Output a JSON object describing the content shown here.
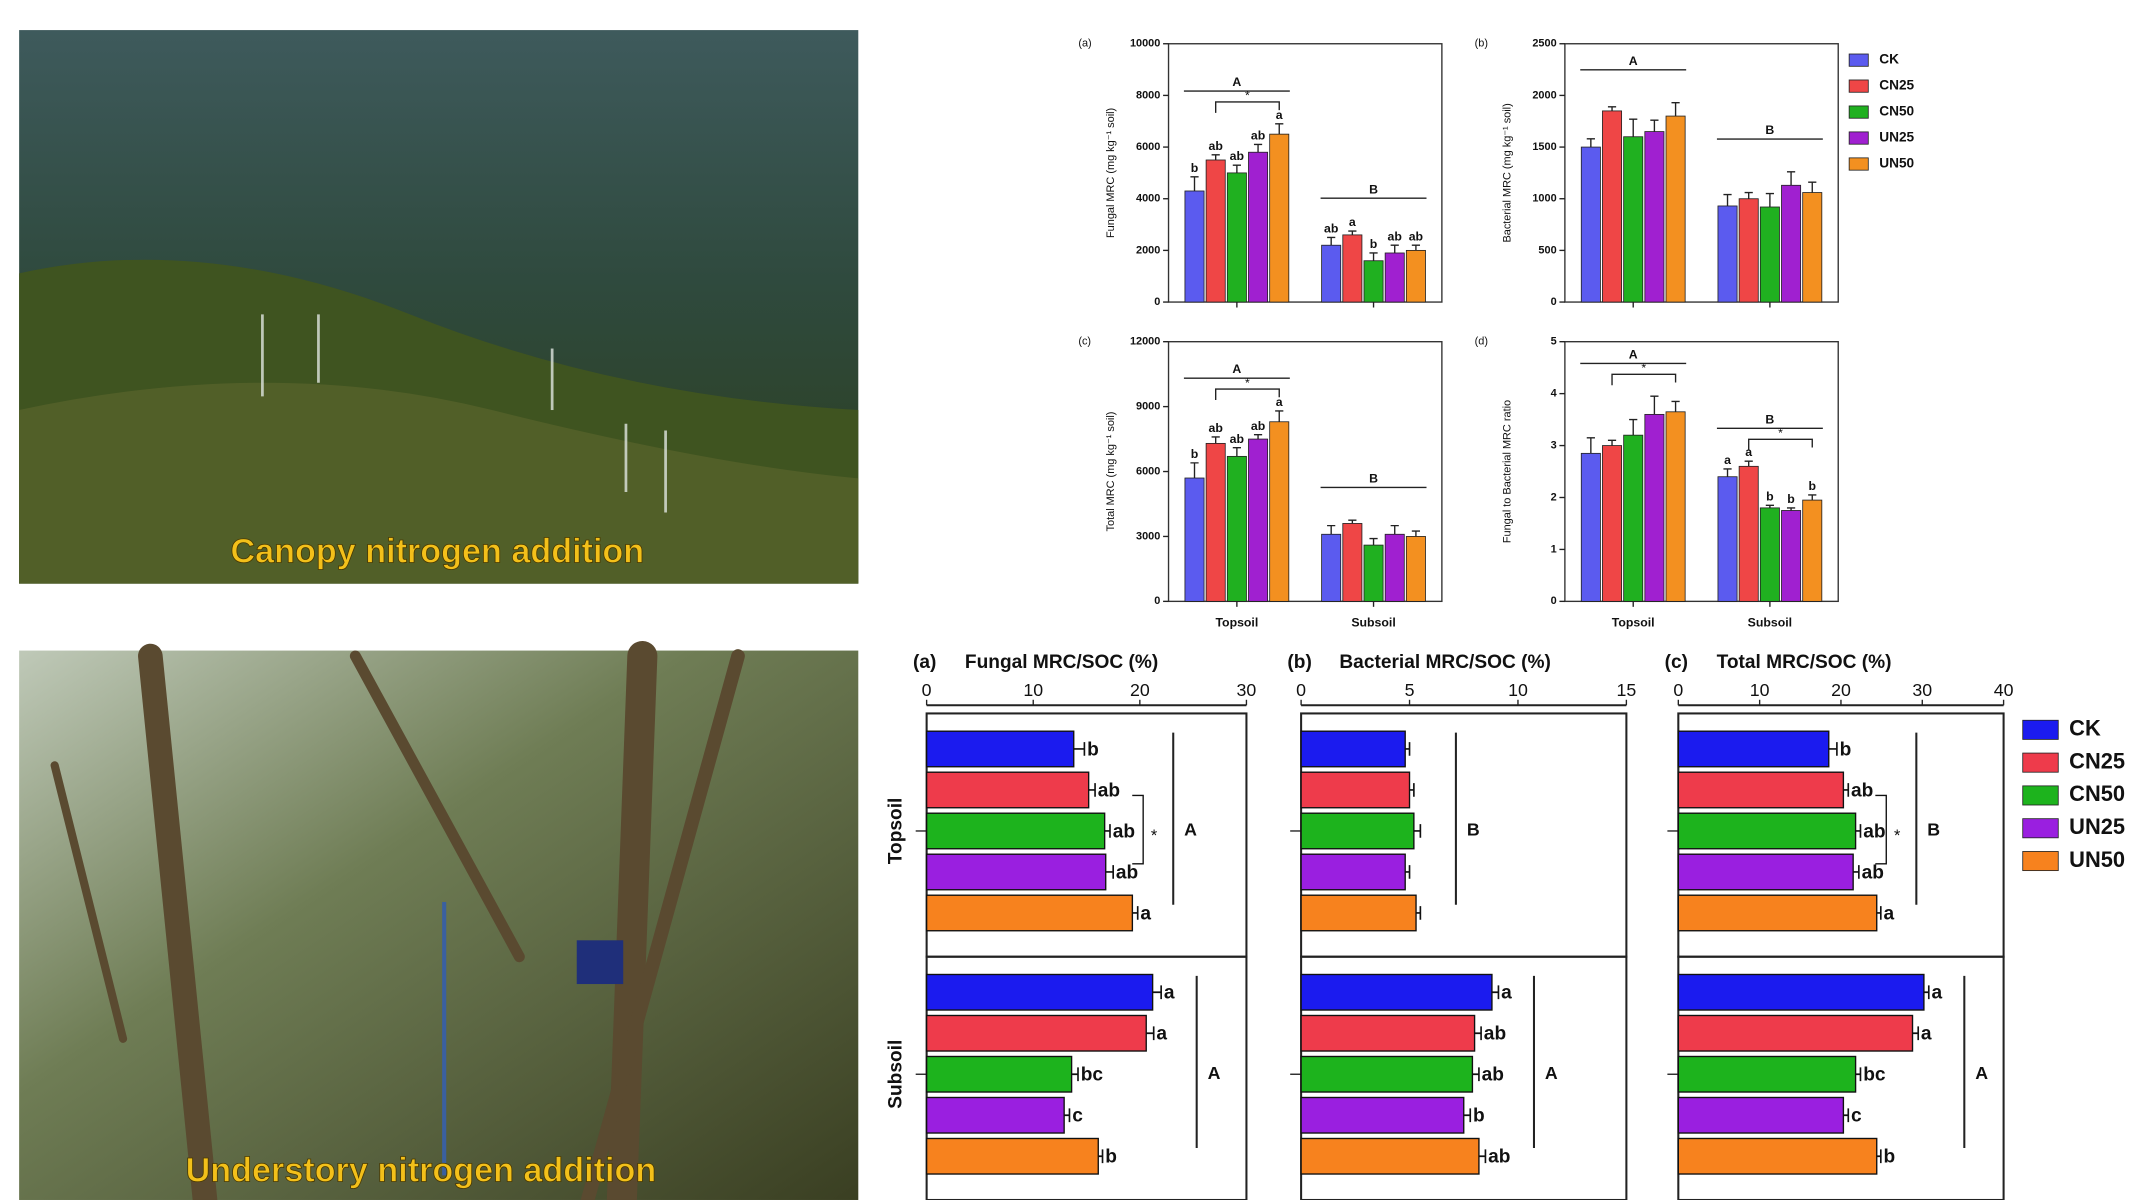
{
  "photos": [
    {
      "caption": "Canopy nitrogen addition"
    },
    {
      "caption": "Understory nitrogen addition"
    }
  ],
  "chart_data": [
    {
      "type": "bar",
      "panel": "(a)",
      "ylabel": "Fungal MRC (mg kg⁻¹ soil)",
      "categories": [
        null,
        null
      ],
      "ylim": [
        0,
        10000
      ],
      "yticks": [
        0,
        2000,
        4000,
        6000,
        8000,
        10000
      ],
      "series": [
        {
          "color": "#5b5bef",
          "values": [
            4300,
            2200
          ],
          "errors": [
            550,
            300
          ],
          "labels": [
            "b",
            "ab"
          ]
        },
        {
          "color": "#ef4646",
          "values": [
            5500,
            2600
          ],
          "errors": [
            200,
            150
          ],
          "labels": [
            "ab",
            "a"
          ]
        },
        {
          "color": "#20b020",
          "values": [
            5000,
            1600
          ],
          "errors": [
            300,
            300
          ],
          "labels": [
            "ab",
            "b"
          ]
        },
        {
          "color": "#a020d0",
          "values": [
            5800,
            1900
          ],
          "errors": [
            300,
            300
          ],
          "labels": [
            "ab",
            "ab"
          ]
        },
        {
          "color": "#f39020",
          "values": [
            6500,
            2000
          ],
          "errors": [
            400,
            200
          ],
          "labels": [
            "a",
            "ab"
          ]
        }
      ],
      "groups": [
        {
          "letter": "A",
          "star": "*"
        },
        {
          "letter": "B"
        }
      ]
    },
    {
      "type": "bar",
      "panel": "(b)",
      "ylabel": "Bacterial MRC (mg kg⁻¹ soil)",
      "categories": [
        null,
        null
      ],
      "ylim": [
        0,
        2500
      ],
      "yticks": [
        0,
        500,
        1000,
        1500,
        2000,
        2500
      ],
      "legend": "right",
      "series": [
        {
          "name": "CK",
          "color": "#5b5bef",
          "values": [
            1500,
            930
          ],
          "errors": [
            80,
            110
          ]
        },
        {
          "name": "CN25",
          "color": "#ef4646",
          "values": [
            1850,
            1000
          ],
          "errors": [
            40,
            60
          ]
        },
        {
          "name": "CN50",
          "color": "#20b020",
          "values": [
            1600,
            920
          ],
          "errors": [
            170,
            130
          ]
        },
        {
          "name": "UN25",
          "color": "#a020d0",
          "values": [
            1650,
            1130
          ],
          "errors": [
            110,
            130
          ]
        },
        {
          "name": "UN50",
          "color": "#f39020",
          "values": [
            1800,
            1060
          ],
          "errors": [
            130,
            100
          ]
        }
      ],
      "groups": [
        {
          "letter": "A"
        },
        {
          "letter": "B"
        }
      ]
    },
    {
      "type": "bar",
      "panel": "(c)",
      "ylabel": "Total MRC (mg kg⁻¹ soil)",
      "categories": [
        "Topsoil",
        "Subsoil"
      ],
      "ylim": [
        0,
        12000
      ],
      "yticks": [
        0,
        3000,
        6000,
        9000,
        12000
      ],
      "series": [
        {
          "color": "#5b5bef",
          "values": [
            5700,
            3100
          ],
          "errors": [
            700,
            400
          ],
          "labels": [
            "b",
            null
          ]
        },
        {
          "color": "#ef4646",
          "values": [
            7300,
            3600
          ],
          "errors": [
            300,
            150
          ],
          "labels": [
            "ab",
            null
          ]
        },
        {
          "color": "#20b020",
          "values": [
            6700,
            2600
          ],
          "errors": [
            400,
            300
          ],
          "labels": [
            "ab",
            null
          ]
        },
        {
          "color": "#a020d0",
          "values": [
            7500,
            3100
          ],
          "errors": [
            200,
            400
          ],
          "labels": [
            "ab",
            null
          ]
        },
        {
          "color": "#f39020",
          "values": [
            8300,
            3000
          ],
          "errors": [
            500,
            250
          ],
          "labels": [
            "a",
            null
          ]
        }
      ],
      "groups": [
        {
          "letter": "A",
          "star": "*"
        },
        {
          "letter": "B"
        }
      ]
    },
    {
      "type": "bar",
      "panel": "(d)",
      "ylabel": "Fungal to Bacterial MRC ratio",
      "categories": [
        "Topsoil",
        "Subsoil"
      ],
      "ylim": [
        0,
        5
      ],
      "yticks": [
        0,
        1,
        2,
        3,
        4,
        5
      ],
      "series": [
        {
          "color": "#5b5bef",
          "values": [
            2.85,
            2.4
          ],
          "errors": [
            0.3,
            0.15
          ],
          "labels": [
            null,
            "a"
          ]
        },
        {
          "color": "#ef4646",
          "values": [
            3.0,
            2.6
          ],
          "errors": [
            0.1,
            0.1
          ],
          "labels": [
            null,
            "a"
          ]
        },
        {
          "color": "#20b020",
          "values": [
            3.2,
            1.8
          ],
          "errors": [
            0.3,
            0.05
          ],
          "labels": [
            null,
            "b"
          ]
        },
        {
          "color": "#a020d0",
          "values": [
            3.6,
            1.75
          ],
          "errors": [
            0.35,
            0.05
          ],
          "labels": [
            null,
            "b"
          ]
        },
        {
          "color": "#f39020",
          "values": [
            3.65,
            1.95
          ],
          "errors": [
            0.2,
            0.1
          ],
          "labels": [
            null,
            "b"
          ]
        }
      ],
      "groups": [
        {
          "letter": "A",
          "star": "*"
        },
        {
          "letter": "B",
          "star": "*"
        }
      ]
    },
    {
      "type": "barh",
      "panel": "(a)",
      "title": "Fungal MRC/SOC (%)",
      "categories": [
        "Topsoil",
        "Subsoil"
      ],
      "xlim": [
        0,
        30
      ],
      "xticks": [
        0,
        10,
        20,
        30
      ],
      "series": [
        {
          "color": "#1b1bef",
          "values": [
            13.8,
            21.2
          ],
          "errors": [
            1,
            0.8
          ],
          "labels": [
            "b",
            "a"
          ]
        },
        {
          "color": "#ee3b4b",
          "values": [
            15.2,
            20.6
          ],
          "errors": [
            0.6,
            0.7
          ],
          "labels": [
            "ab",
            "a"
          ]
        },
        {
          "color": "#1db31d",
          "values": [
            16.7,
            13.6
          ],
          "errors": [
            0.5,
            0.6
          ],
          "labels": [
            "ab",
            "bc"
          ]
        },
        {
          "color": "#9a1fe0",
          "values": [
            16.8,
            12.9
          ],
          "errors": [
            0.7,
            0.5
          ],
          "labels": [
            "ab",
            "c"
          ]
        },
        {
          "color": "#f7821e",
          "values": [
            19.3,
            16.1
          ],
          "errors": [
            0.5,
            0.4
          ],
          "labels": [
            "a",
            "b"
          ]
        }
      ],
      "groups": [
        {
          "letter": "A",
          "star": "*"
        },
        {
          "letter": "A"
        }
      ]
    },
    {
      "type": "barh",
      "panel": "(b)",
      "title": "Bacterial MRC/SOC (%)",
      "categories": [
        null,
        null
      ],
      "xlim": [
        0,
        15
      ],
      "xticks": [
        0,
        5,
        10,
        15
      ],
      "series": [
        {
          "color": "#1b1bef",
          "values": [
            4.8,
            8.8
          ],
          "errors": [
            0.2,
            0.3
          ],
          "labels": [
            null,
            "a"
          ]
        },
        {
          "color": "#ee3b4b",
          "values": [
            5.0,
            8.0
          ],
          "errors": [
            0.2,
            0.3
          ],
          "labels": [
            null,
            "ab"
          ]
        },
        {
          "color": "#1db31d",
          "values": [
            5.2,
            7.9
          ],
          "errors": [
            0.3,
            0.3
          ],
          "labels": [
            null,
            "ab"
          ]
        },
        {
          "color": "#9a1fe0",
          "values": [
            4.8,
            7.5
          ],
          "errors": [
            0.2,
            0.3
          ],
          "labels": [
            null,
            "b"
          ]
        },
        {
          "color": "#f7821e",
          "values": [
            5.3,
            8.2
          ],
          "errors": [
            0.2,
            0.3
          ],
          "labels": [
            null,
            "ab"
          ]
        }
      ],
      "groups": [
        {
          "letter": "B"
        },
        {
          "letter": "A"
        }
      ]
    },
    {
      "type": "barh",
      "panel": "(c)",
      "title": "Total MRC/SOC (%)",
      "categories": [
        null,
        null
      ],
      "xlim": [
        0,
        40
      ],
      "xticks": [
        0,
        10,
        20,
        30,
        40
      ],
      "legend": "right",
      "series": [
        {
          "name": "CK",
          "color": "#1b1bef",
          "values": [
            18.5,
            30.2
          ],
          "errors": [
            1,
            0.6
          ],
          "labels": [
            "b",
            "a"
          ]
        },
        {
          "name": "CN25",
          "color": "#ee3b4b",
          "values": [
            20.3,
            28.8
          ],
          "errors": [
            0.6,
            0.7
          ],
          "labels": [
            "ab",
            "a"
          ]
        },
        {
          "name": "CN50",
          "color": "#1db31d",
          "values": [
            21.8,
            21.8
          ],
          "errors": [
            0.6,
            0.6
          ],
          "labels": [
            "ab",
            "bc"
          ]
        },
        {
          "name": "UN25",
          "color": "#9a1fe0",
          "values": [
            21.5,
            20.3
          ],
          "errors": [
            0.7,
            0.6
          ],
          "labels": [
            "ab",
            "c"
          ]
        },
        {
          "name": "UN50",
          "color": "#f7821e",
          "values": [
            24.4,
            24.4
          ],
          "errors": [
            0.5,
            0.5
          ],
          "labels": [
            "a",
            "b"
          ]
        }
      ],
      "groups": [
        {
          "letter": "B",
          "star": "*"
        },
        {
          "letter": "A"
        }
      ]
    }
  ]
}
